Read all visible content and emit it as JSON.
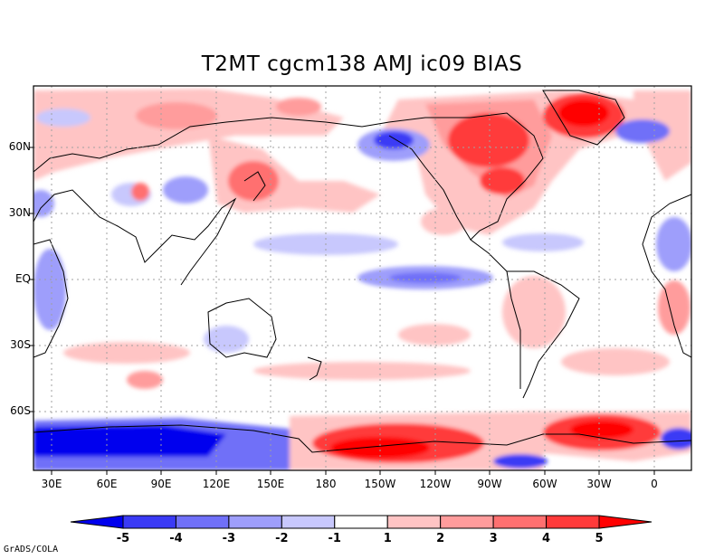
{
  "title": "T2MT cgcm138 AMJ ic09 BIAS",
  "credit": "GrADS/COLA",
  "lat_labels": [
    "60N",
    "30N",
    "EQ",
    "30S",
    "60S"
  ],
  "lon_labels": [
    "30E",
    "60E",
    "90E",
    "120E",
    "150E",
    "180",
    "150W",
    "120W",
    "90W",
    "60W",
    "30W",
    "0"
  ],
  "colorbar": {
    "labels": [
      "-5",
      "-4",
      "-3",
      "-2",
      "-1",
      "1",
      "2",
      "3",
      "4",
      "5"
    ],
    "colors": [
      "#0000ee",
      "#3a3af5",
      "#7070f8",
      "#9e9efb",
      "#c8c8fd",
      "#ffffff",
      "#ffc4c4",
      "#ff9c9c",
      "#ff7070",
      "#ff3a3a",
      "#ff0000"
    ]
  },
  "colors": {
    "ocean_bg": "#ffffff",
    "coast": "#000000",
    "grid": "#a0a0a0"
  }
}
